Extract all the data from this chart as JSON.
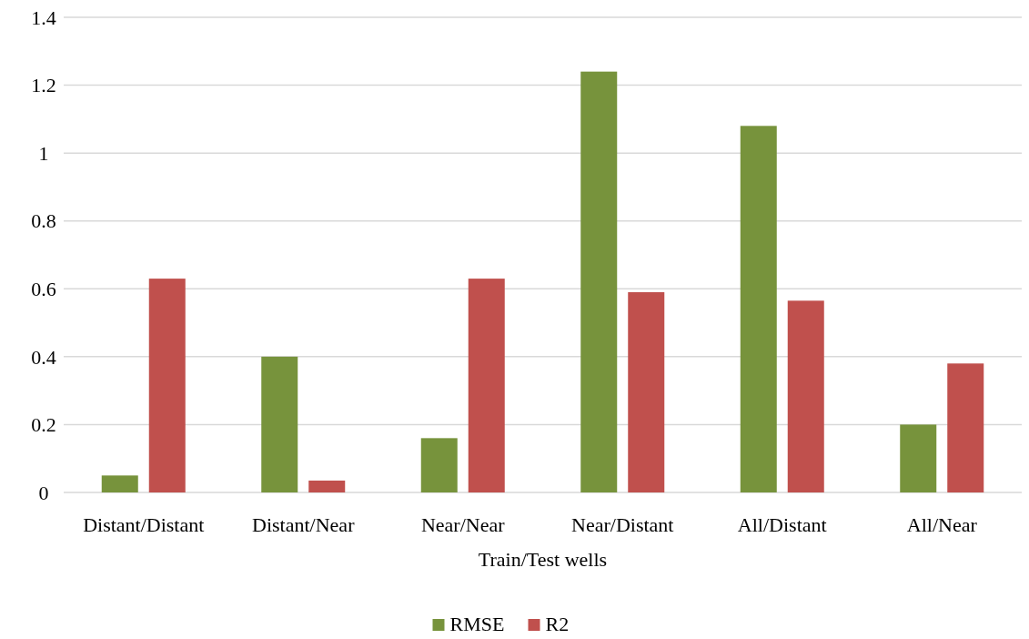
{
  "chart_data": {
    "type": "bar",
    "xlabel": "Train/Test wells",
    "categories": [
      "Distant/Distant",
      "Distant/Near",
      "Near/Near",
      "Near/Distant",
      "All/Distant",
      "All/Near"
    ],
    "series": [
      {
        "name": "RMSE",
        "color": "#77933c",
        "values": [
          0.05,
          0.4,
          0.16,
          1.24,
          1.08,
          0.2
        ]
      },
      {
        "name": "R2",
        "color": "#c0504d",
        "values": [
          0.63,
          0.035,
          0.63,
          0.59,
          0.565,
          0.38
        ]
      }
    ],
    "ylim": [
      0,
      1.4
    ],
    "yticks": [
      0,
      0.2,
      0.4,
      0.6,
      0.8,
      1,
      1.2,
      1.4
    ],
    "grid": "y",
    "legend": "bottom"
  }
}
